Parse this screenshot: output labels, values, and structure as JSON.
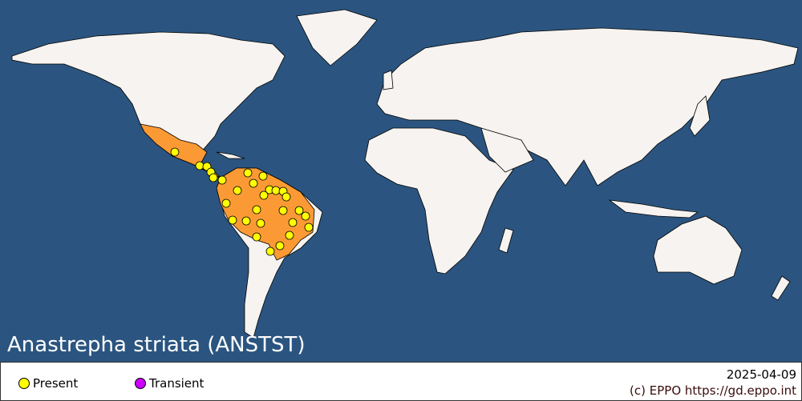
{
  "title": "Anastrepha striata (ANSTST)",
  "legend": [
    {
      "label": "Present",
      "color": "#ffff00"
    },
    {
      "label": "Transient",
      "color": "#cc00ff"
    }
  ],
  "date": "2025-04-09",
  "credit": "(c) EPPO https://gd.eppo.int",
  "colors": {
    "ocean": "#2b5580",
    "land": "#f6f3f0",
    "distribution": "#fb9a35",
    "present": "#ffff00"
  },
  "distribution_countries_shaded": [
    "Mexico",
    "Central America",
    "Colombia",
    "Venezuela",
    "Guyana",
    "Suriname",
    "French Guiana",
    "Ecuador",
    "Peru",
    "Bolivia",
    "Brazil",
    "Paraguay"
  ],
  "present_points_count_note": ""
}
